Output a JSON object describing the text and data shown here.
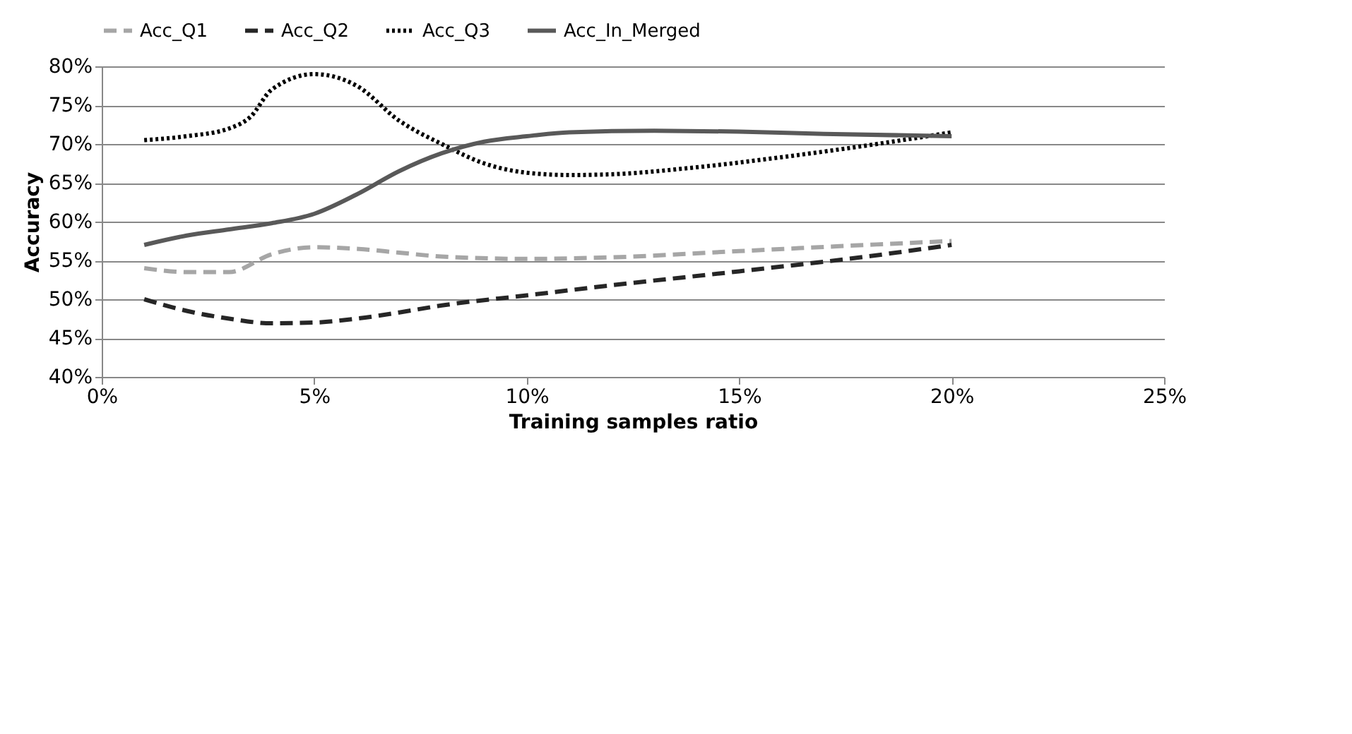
{
  "chart_data": {
    "type": "line",
    "xlabel": "Training samples ratio",
    "ylabel": "Accuracy",
    "xlim": [
      0,
      25
    ],
    "ylim": [
      40,
      80
    ],
    "xticks": [
      {
        "value": 0,
        "label": "0%"
      },
      {
        "value": 5,
        "label": "5%"
      },
      {
        "value": 10,
        "label": "10%"
      },
      {
        "value": 15,
        "label": "15%"
      },
      {
        "value": 20,
        "label": "20%"
      },
      {
        "value": 25,
        "label": "25%"
      }
    ],
    "yticks": [
      {
        "value": 40,
        "label": "40%"
      },
      {
        "value": 45,
        "label": "45%"
      },
      {
        "value": 50,
        "label": "50%"
      },
      {
        "value": 55,
        "label": "55%"
      },
      {
        "value": 60,
        "label": "60%"
      },
      {
        "value": 65,
        "label": "65%"
      },
      {
        "value": 70,
        "label": "70%"
      },
      {
        "value": 75,
        "label": "75%"
      },
      {
        "value": 80,
        "label": "80%"
      }
    ],
    "grid": "y",
    "legend": "top",
    "marker": "none",
    "series": [
      {
        "name": "Acc_Q1",
        "color": "#a6a6a6",
        "line_style": "dashed",
        "x": [
          1,
          2,
          3,
          4,
          5,
          6,
          7,
          8,
          10,
          12,
          15,
          18,
          20
        ],
        "values": [
          54,
          53.5,
          53.5,
          55.8,
          56.7,
          56.5,
          56,
          55.5,
          55.2,
          55.4,
          56.2,
          57,
          57.5
        ]
      },
      {
        "name": "Acc_Q2",
        "color": "#262626",
        "line_style": "dashed",
        "x": [
          1,
          2,
          3,
          4,
          5,
          6,
          7,
          8,
          10,
          12,
          15,
          18,
          20
        ],
        "values": [
          50,
          48.5,
          47.5,
          46.9,
          47,
          47.5,
          48.3,
          49.2,
          50.5,
          51.8,
          53.6,
          55.5,
          57
        ]
      },
      {
        "name": "Acc_Q3",
        "color": "#000000",
        "line_style": "dotted",
        "x": [
          1,
          2,
          3,
          3.5,
          4,
          5,
          6,
          7,
          8,
          9,
          10,
          11,
          12,
          14,
          16,
          18,
          20
        ],
        "values": [
          70.5,
          71,
          72,
          73.5,
          77,
          79,
          77.5,
          73,
          70,
          67.5,
          66.3,
          66,
          66.1,
          67,
          68.3,
          69.8,
          71.5
        ]
      },
      {
        "name": "Acc_In_Merged",
        "color": "#595959",
        "line_style": "solid",
        "x": [
          1,
          2,
          3,
          4,
          5,
          6,
          7,
          8,
          9,
          10,
          11,
          13,
          15,
          17,
          20
        ],
        "values": [
          57,
          58.2,
          59,
          59.8,
          61,
          63.5,
          66.5,
          68.8,
          70.3,
          71,
          71.5,
          71.7,
          71.6,
          71.3,
          71
        ]
      }
    ]
  }
}
